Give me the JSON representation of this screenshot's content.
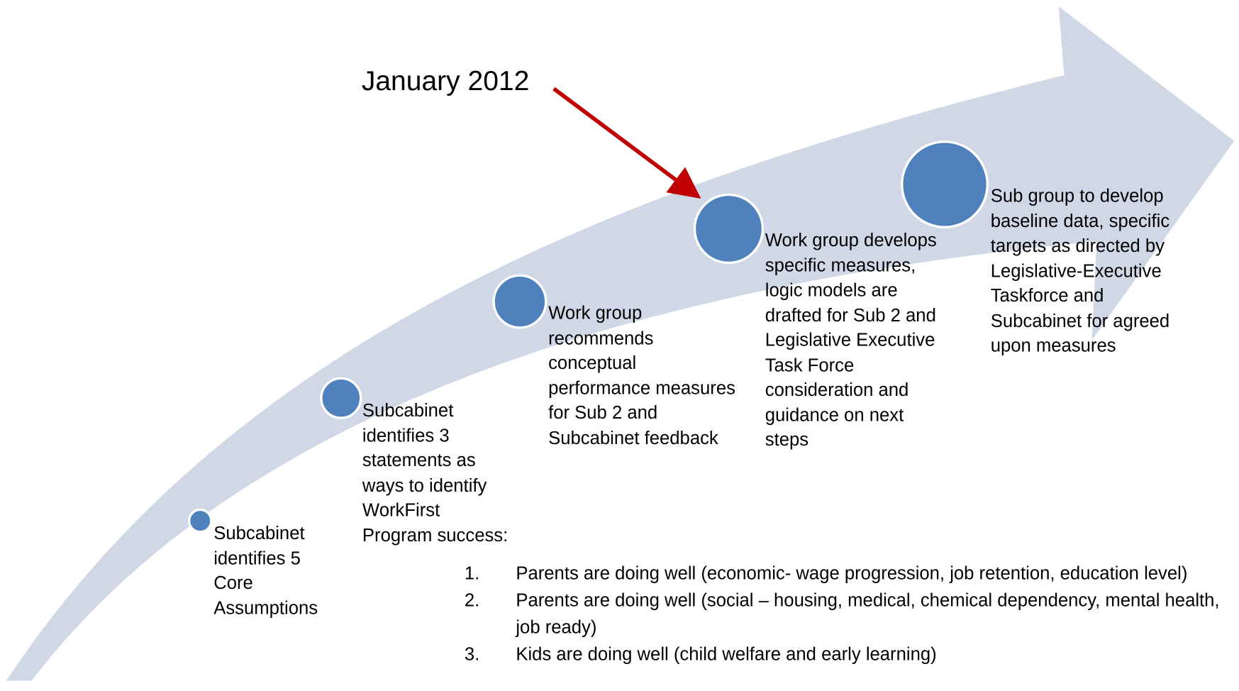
{
  "annotation": "January 2012",
  "steps": [
    {
      "text": "Subcabinet identifies 5 Core Assumptions"
    },
    {
      "text": "Subcabinet identifies 3 statements as ways to identify WorkFirst Program success:"
    },
    {
      "text": "Work group recommends conceptual performance measures for Sub 2 and Subcabinet feedback"
    },
    {
      "text": "Work group develops specific measures, logic models are drafted for Sub 2 and Legislative Executive Task Force consideration and guidance on next steps"
    },
    {
      "text": "Sub group to develop baseline data, specific targets as directed by Legislative-Executive Taskforce and Subcabinet for agreed upon measures"
    }
  ],
  "list": [
    {
      "number": "1.",
      "text": "Parents are doing well (economic- wage progression, job retention, education level)"
    },
    {
      "number": "2.",
      "text": "Parents are doing well (social – housing, medical, chemical dependency, mental health, job ready)"
    },
    {
      "number": "3.",
      "text": "Kids are doing well (child welfare and early learning)"
    }
  ]
}
